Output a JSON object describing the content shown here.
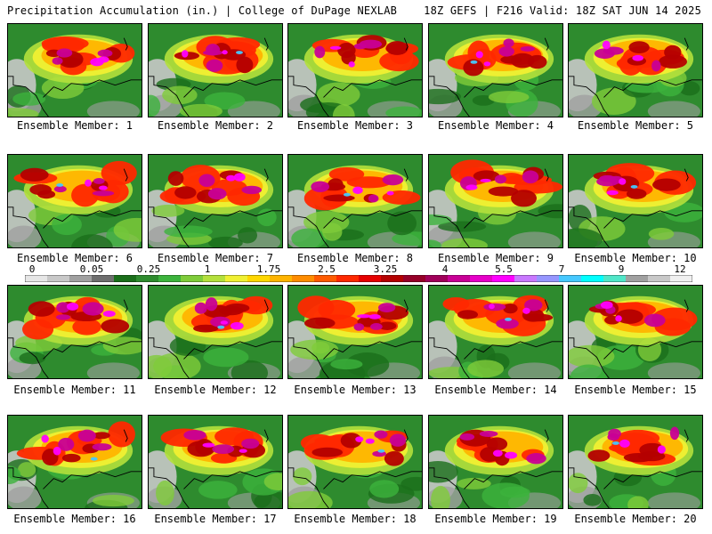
{
  "header": {
    "left": "Precipitation Accumulation (in.) | College of DuPage NEXLAB",
    "right": "18Z GEFS | F216 Valid: 18Z SAT JUN 14 2025"
  },
  "colorbar": {
    "labels": [
      "0",
      "0.05",
      "0.25",
      "1",
      "1.75",
      "2.5",
      "3.25",
      "4",
      "5.5",
      "7",
      "9",
      "12"
    ],
    "colors": [
      "#e6e6e6",
      "#c8c8c8",
      "#a0a0a0",
      "#6e6e6e",
      "#1a6e1a",
      "#2e8b2e",
      "#3cb33c",
      "#7fcc3a",
      "#b4e03c",
      "#f0f032",
      "#ffd700",
      "#ffb400",
      "#ff8c00",
      "#ff5a00",
      "#ff2800",
      "#e60000",
      "#b40000",
      "#960028",
      "#a0005a",
      "#c80096",
      "#e600c8",
      "#ff00ff",
      "#c878ff",
      "#9696ff",
      "#46c8ff",
      "#00ffff",
      "#50e6c8",
      "#a0a0a0",
      "#c8c8c8",
      "#f0f0f0"
    ]
  },
  "members": [
    {
      "label": "Ensemble Member: 1"
    },
    {
      "label": "Ensemble Member: 2"
    },
    {
      "label": "Ensemble Member: 3"
    },
    {
      "label": "Ensemble Member: 4"
    },
    {
      "label": "Ensemble Member: 5"
    },
    {
      "label": "Ensemble Member: 6"
    },
    {
      "label": "Ensemble Member: 7"
    },
    {
      "label": "Ensemble Member: 8"
    },
    {
      "label": "Ensemble Member: 9"
    },
    {
      "label": "Ensemble Member: 10"
    },
    {
      "label": "Ensemble Member: 11"
    },
    {
      "label": "Ensemble Member: 12"
    },
    {
      "label": "Ensemble Member: 13"
    },
    {
      "label": "Ensemble Member: 14"
    },
    {
      "label": "Ensemble Member: 15"
    },
    {
      "label": "Ensemble Member: 16"
    },
    {
      "label": "Ensemble Member: 17"
    },
    {
      "label": "Ensemble Member: 18"
    },
    {
      "label": "Ensemble Member: 19"
    },
    {
      "label": "Ensemble Member: 20"
    }
  ]
}
